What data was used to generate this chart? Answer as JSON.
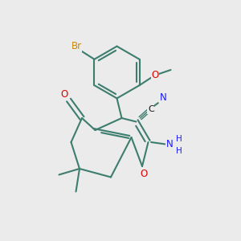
{
  "bg_color": "#EBEBEB",
  "bond_color": "#3d7d6e",
  "atom_colors": {
    "O": "#dd0000",
    "N": "#1a1aff",
    "Br": "#cc8800",
    "C": "#111111",
    "default": "#3d7d6e"
  },
  "lw": 1.5
}
